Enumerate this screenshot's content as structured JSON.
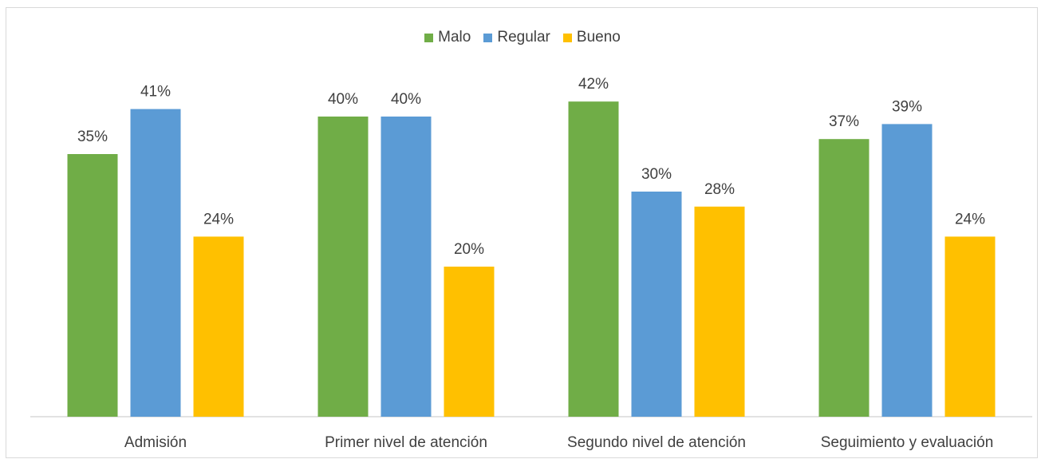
{
  "chart_data": {
    "type": "bar",
    "categories": [
      "Admisión",
      "Primer nivel de atención",
      "Segundo nivel de atención",
      "Seguimiento y evaluación"
    ],
    "series": [
      {
        "name": "Malo",
        "color": "#70ad47",
        "values": [
          35,
          40,
          42,
          37
        ]
      },
      {
        "name": "Regular",
        "color": "#5b9bd5",
        "values": [
          41,
          40,
          30,
          39
        ]
      },
      {
        "name": "Bueno",
        "color": "#ffc000",
        "values": [
          24,
          20,
          28,
          24
        ]
      }
    ],
    "value_suffix": "%",
    "ylim": [
      0,
      45
    ],
    "grid": false,
    "legend_position": "top-center",
    "title": "",
    "xlabel": "",
    "ylabel": ""
  }
}
